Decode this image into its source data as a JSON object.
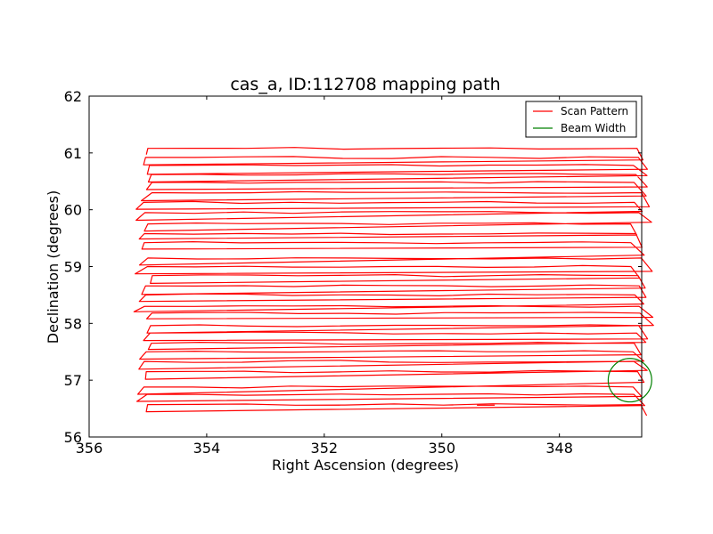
{
  "chart_data": {
    "type": "line",
    "title": "cas_a, ID:112708 mapping path",
    "xlabel": "Right Ascension (degrees)",
    "ylabel": "Declination (degrees)",
    "xlim": [
      356,
      346.6
    ],
    "ylim": [
      56,
      62
    ],
    "x_inverted": true,
    "xticks": [
      356,
      354,
      352,
      350,
      348
    ],
    "yticks": [
      56,
      57,
      58,
      59,
      60,
      61,
      62
    ],
    "xtick_labels": [
      "356",
      "354",
      "352",
      "350",
      "348"
    ],
    "ytick_labels": [
      "56",
      "57",
      "58",
      "59",
      "60",
      "61",
      "62"
    ],
    "legend": {
      "position": "top-right",
      "entries": [
        {
          "label": "Scan Pattern",
          "color": "#ff0000"
        },
        {
          "label": "Beam Width",
          "color": "#008000"
        }
      ]
    },
    "scan_pattern": {
      "name": "Scan Pattern",
      "color": "#ff0000",
      "ra_start": 355.0,
      "ra_end": 346.8,
      "row_declinations": [
        56.57,
        56.75,
        56.88,
        57.15,
        57.33,
        57.5,
        57.65,
        57.83,
        57.96,
        58.18,
        58.3,
        58.5,
        58.66,
        58.84,
        59.0,
        59.15,
        59.42,
        59.58,
        59.75,
        59.95,
        60.13,
        60.3,
        60.48,
        60.62,
        60.78,
        60.92,
        61.08
      ],
      "end_point": [
        349.1,
        56.56
      ]
    },
    "beam_width": {
      "name": "Beam Width",
      "color": "#008000",
      "center_ra": 346.8,
      "center_dec": 57.0,
      "radius_deg": 0.37
    }
  }
}
